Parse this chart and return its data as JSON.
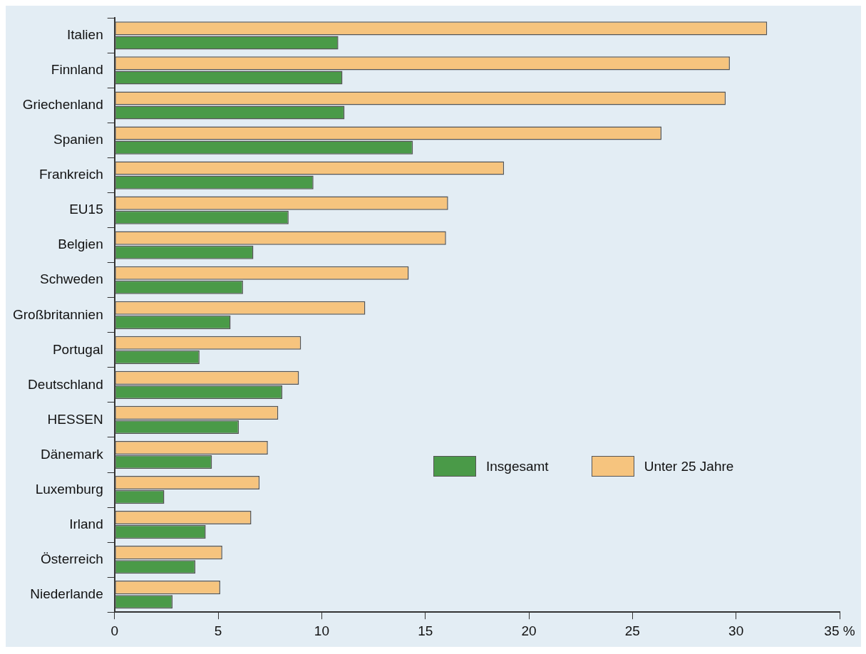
{
  "chart_data": {
    "type": "bar",
    "orientation": "horizontal",
    "categories": [
      "Italien",
      "Finnland",
      "Griechenland",
      "Spanien",
      "Frankreich",
      "EU15",
      "Belgien",
      "Schweden",
      "Großbritannien",
      "Portugal",
      "Deutschland",
      "HESSEN",
      "Dänemark",
      "Luxemburg",
      "Irland",
      "Österreich",
      "Niederlande"
    ],
    "series": [
      {
        "name": "Insgesamt",
        "color": "#4a9a48",
        "values": [
          10.8,
          11.0,
          11.1,
          14.4,
          9.6,
          8.4,
          6.7,
          6.2,
          5.6,
          4.1,
          8.1,
          6.0,
          4.7,
          2.4,
          4.4,
          3.9,
          2.8
        ]
      },
      {
        "name": "Unter 25 Jahre",
        "color": "#f6c47e",
        "values": [
          31.5,
          29.7,
          29.5,
          26.4,
          18.8,
          16.1,
          16.0,
          14.2,
          12.1,
          9.0,
          8.9,
          7.9,
          7.4,
          7.0,
          6.6,
          5.2,
          5.1
        ]
      }
    ],
    "xlim": [
      0,
      35
    ],
    "xticks": [
      0,
      5,
      10,
      15,
      20,
      25,
      30,
      {
        "value": 35,
        "label": "35 %"
      }
    ],
    "grid": false,
    "legend": "right"
  }
}
